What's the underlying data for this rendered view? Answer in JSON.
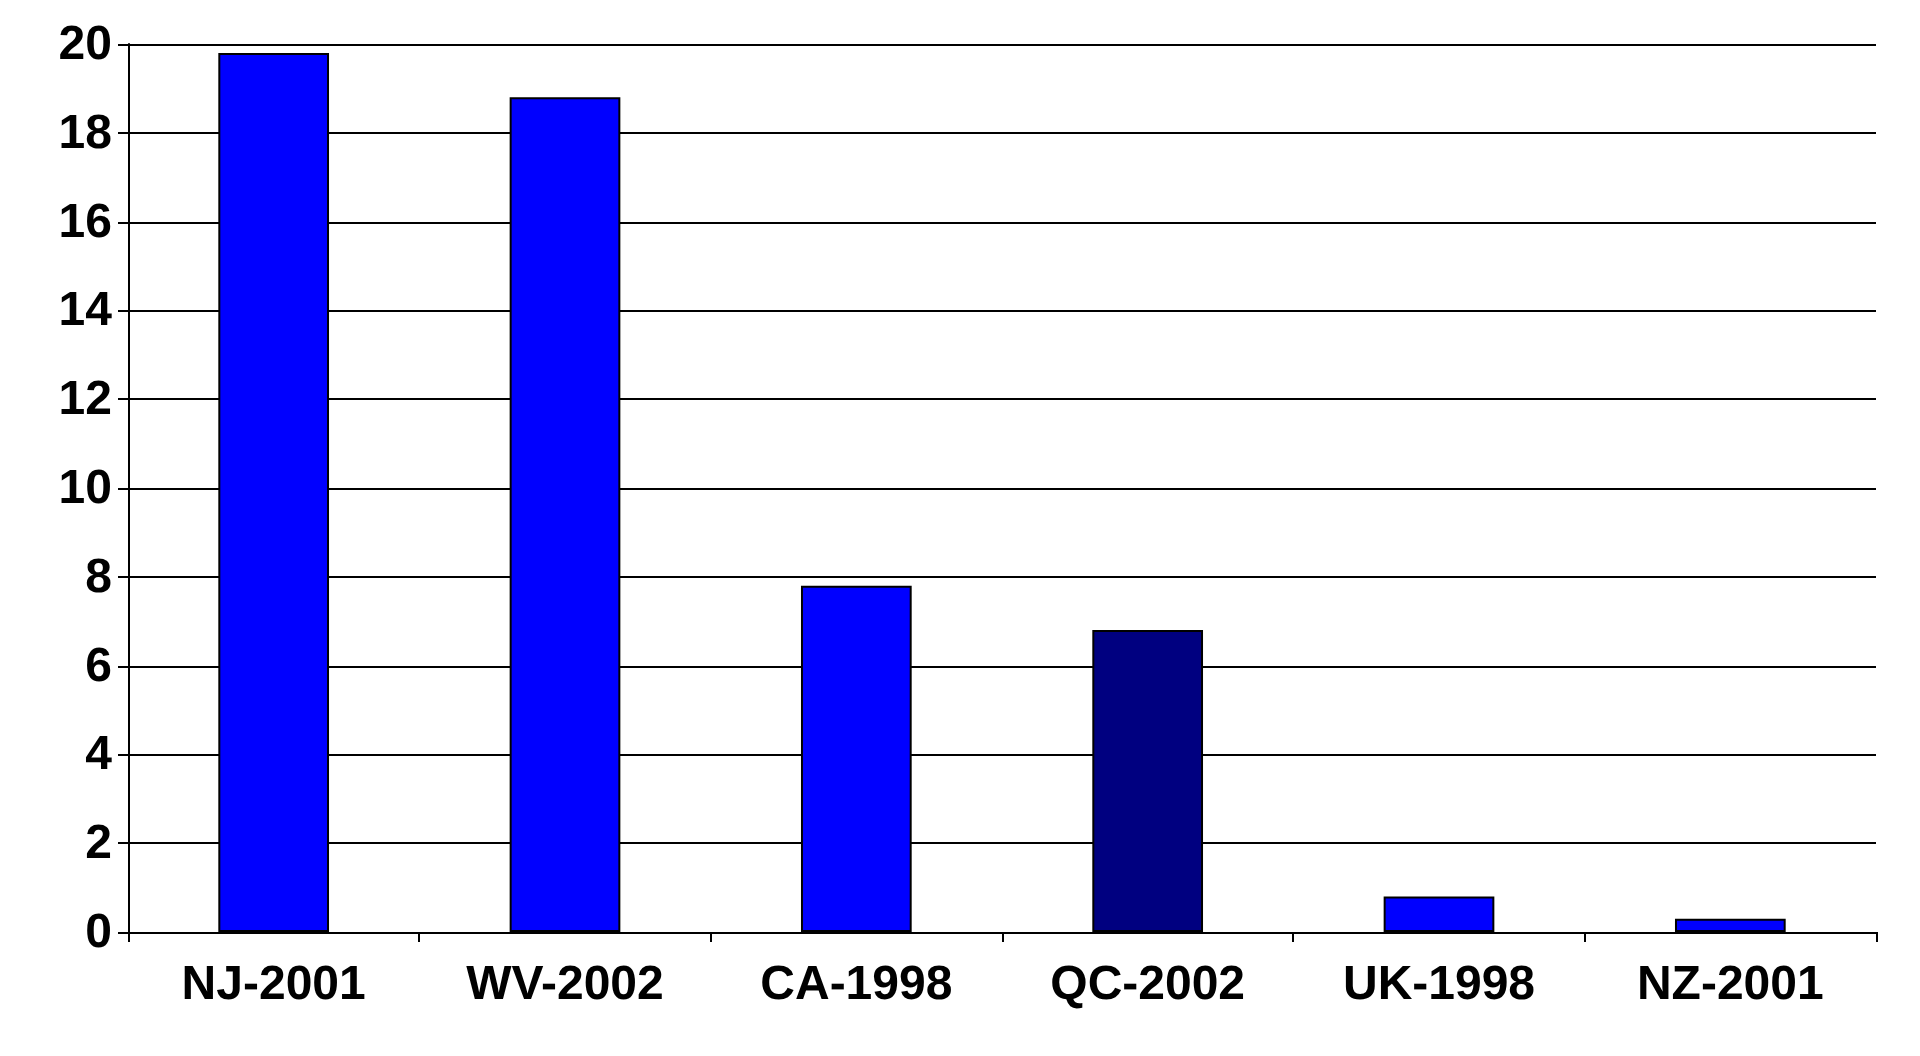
{
  "chart_data": {
    "type": "bar",
    "categories": [
      "NJ-2001",
      "WV-2002",
      "CA-1998",
      "QC-2002",
      "UK-1998",
      "NZ-2001"
    ],
    "values": [
      19.8,
      18.8,
      7.8,
      6.8,
      0.8,
      0.3
    ],
    "colors": [
      "#0000ff",
      "#0000ff",
      "#0000ff",
      "#000080",
      "#0000ff",
      "#0000ff"
    ],
    "ylim": [
      0,
      20
    ],
    "yticks": [
      0,
      2,
      4,
      6,
      8,
      10,
      12,
      14,
      16,
      18,
      20
    ],
    "grid": "y"
  }
}
